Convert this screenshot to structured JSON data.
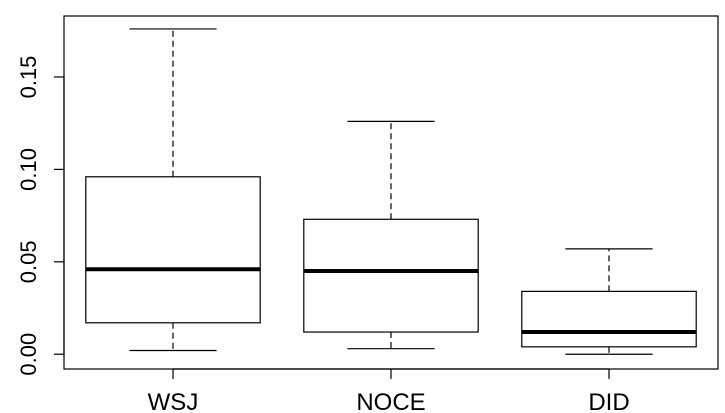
{
  "chart_data": {
    "type": "box",
    "title": "",
    "xlabel": "",
    "ylabel": "",
    "ylim": [
      -0.008,
      0.183
    ],
    "yticks": [
      0.0,
      0.05,
      0.1,
      0.15
    ],
    "ytick_labels": [
      "0.00",
      "0.05",
      "0.10",
      "0.15"
    ],
    "categories": [
      "WSJ",
      "NOCE",
      "DID"
    ],
    "boxes": [
      {
        "label": "WSJ",
        "whisker_low": 0.002,
        "q1": 0.017,
        "median": 0.046,
        "q3": 0.096,
        "whisker_high": 0.176
      },
      {
        "label": "NOCE",
        "whisker_low": 0.003,
        "q1": 0.012,
        "median": 0.045,
        "q3": 0.073,
        "whisker_high": 0.126
      },
      {
        "label": "DID",
        "whisker_low": 0.0,
        "q1": 0.004,
        "median": 0.012,
        "q3": 0.034,
        "whisker_high": 0.057
      }
    ],
    "grid": false,
    "legend": "none"
  }
}
